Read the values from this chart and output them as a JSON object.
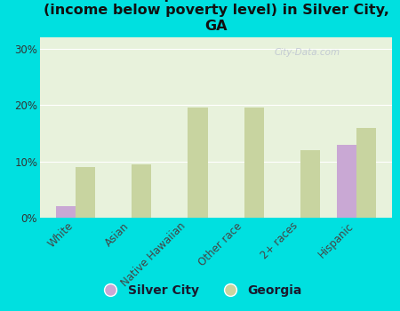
{
  "title": "Breakdown of poor residents within races\n(income below poverty level) in Silver City,\nGA",
  "categories": [
    "White",
    "Asian",
    "Native Hawaiian",
    "Other race",
    "2+ races",
    "Hispanic"
  ],
  "silver_city": [
    2.0,
    0.0,
    0.0,
    0.0,
    0.0,
    13.0
  ],
  "georgia": [
    9.0,
    9.5,
    19.5,
    19.5,
    12.0,
    16.0
  ],
  "silver_city_color": "#c9a8d4",
  "georgia_color": "#c8d4a0",
  "background_outer": "#00e0e0",
  "background_inner": "#e8f2dc",
  "ylim": [
    0,
    32
  ],
  "yticks": [
    0,
    10,
    20,
    30
  ],
  "ytick_labels": [
    "0%",
    "10%",
    "20%",
    "30%"
  ],
  "bar_width": 0.35,
  "title_fontsize": 11.5,
  "tick_fontsize": 8.5,
  "legend_fontsize": 10,
  "watermark": "City-Data.com"
}
